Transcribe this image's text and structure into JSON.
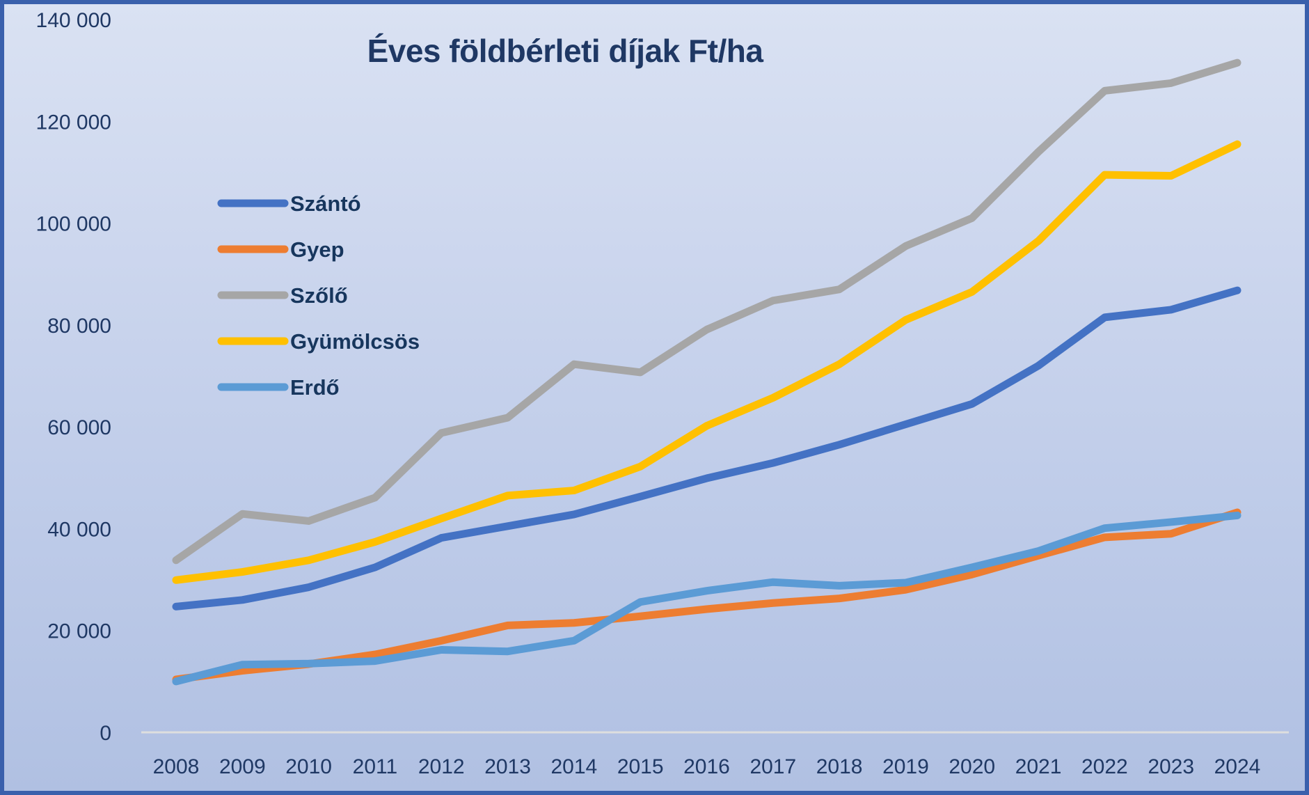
{
  "figure": {
    "title": "Éves földbérleti díjak Ft/ha",
    "unit": "Ft/ha"
  },
  "chart_data": {
    "type": "line",
    "title": "Éves földbérleti díjak Ft/ha",
    "xlabel": "",
    "ylabel": "",
    "unit": "Ft/ha",
    "grid": "off",
    "legend_position": "upper-left",
    "categories": [
      "2008",
      "2009",
      "2010",
      "2011",
      "2012",
      "2013",
      "2014",
      "2015",
      "2016",
      "2017",
      "2018",
      "2019",
      "2020",
      "2021",
      "2022",
      "2023",
      "2024"
    ],
    "y_axis": {
      "min": 0,
      "max": 140000,
      "step": 20000,
      "tick_labels": [
        "0",
        "20 000",
        "40 000",
        "60 000",
        "80 000",
        "100 000",
        "120 000",
        "140 000"
      ]
    },
    "series": [
      {
        "name": "Szántó",
        "color": "#4472C4",
        "values": [
          24700,
          26000,
          28500,
          32400,
          38200,
          40500,
          42800,
          46300,
          49900,
          52900,
          56500,
          60500,
          64500,
          72000,
          81500,
          83000,
          86800
        ]
      },
      {
        "name": "Gyep",
        "color": "#ED7D31",
        "values": [
          10400,
          12100,
          13400,
          15300,
          18000,
          21000,
          21500,
          22800,
          24200,
          25400,
          26300,
          28000,
          31000,
          34700,
          38300,
          39000,
          43200
        ]
      },
      {
        "name": "Szőlő",
        "color": "#A6A6A6",
        "values": [
          33800,
          42900,
          41500,
          46100,
          58800,
          61800,
          72300,
          70700,
          79100,
          84800,
          87000,
          95500,
          101000,
          114000,
          126000,
          127500,
          131500
        ]
      },
      {
        "name": "Gyümölcsös",
        "color": "#FFC000",
        "values": [
          29900,
          31500,
          33800,
          37400,
          42000,
          46500,
          47500,
          52200,
          60200,
          65700,
          72300,
          81000,
          86500,
          96500,
          109500,
          109300,
          115500
        ]
      },
      {
        "name": "Erdő",
        "color": "#5B9BD5",
        "values": [
          10000,
          13300,
          13500,
          14000,
          16200,
          15900,
          18000,
          25600,
          27800,
          29500,
          28800,
          29400,
          32400,
          35600,
          40100,
          41300,
          42600
        ]
      }
    ]
  },
  "colors": {
    "text": "#1F3864",
    "axis_line": "#DEDEDE",
    "border": "#3A60AC"
  }
}
